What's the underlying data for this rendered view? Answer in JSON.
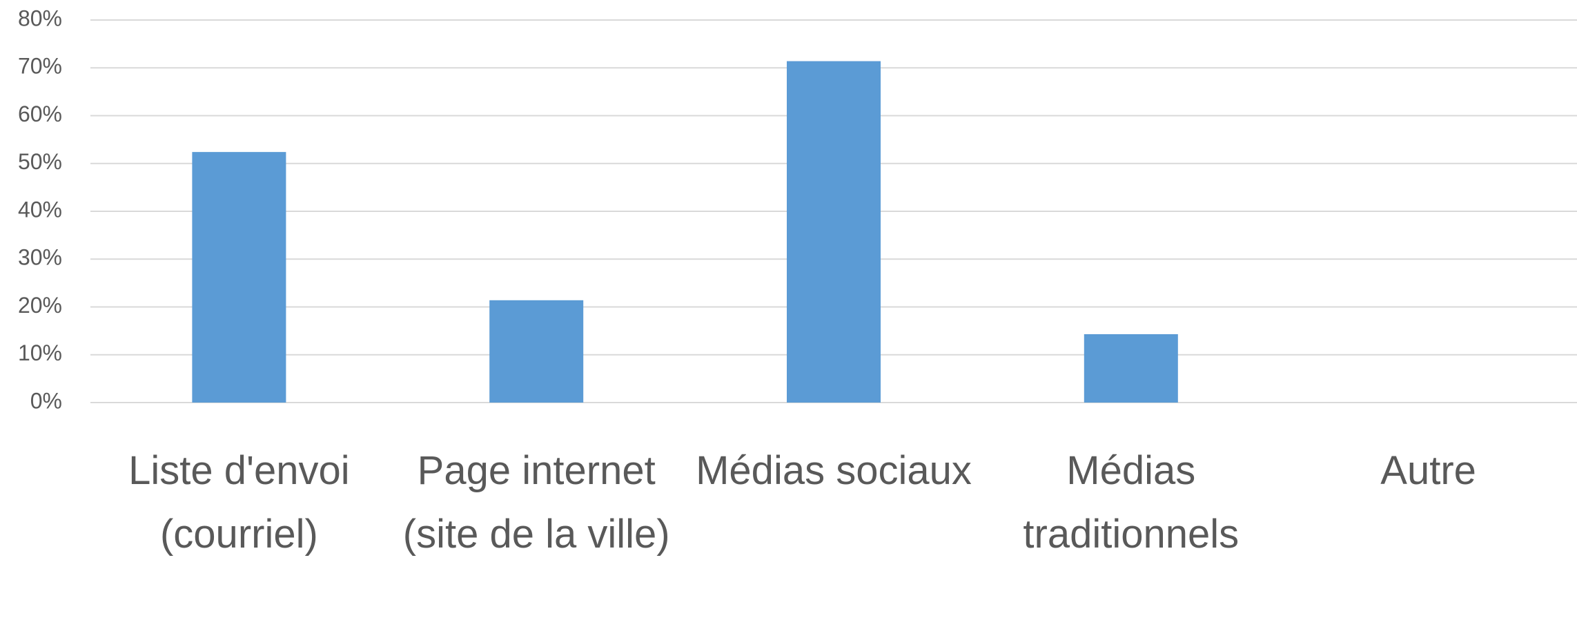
{
  "chart_data": {
    "type": "bar",
    "categories": [
      "Liste d'envoi (courriel)",
      "Page internet (site de la ville)",
      "Médias sociaux",
      "Médias traditionnels",
      "Autre"
    ],
    "values": [
      52.4,
      21.4,
      71.4,
      14.3,
      0
    ],
    "color": "#5b9bd5",
    "ylim": [
      0,
      80
    ],
    "yticks": [
      {
        "value": 0,
        "label": "0%"
      },
      {
        "value": 10,
        "label": "10%"
      },
      {
        "value": 20,
        "label": "20%"
      },
      {
        "value": 30,
        "label": "30%"
      },
      {
        "value": 40,
        "label": "40%"
      },
      {
        "value": 50,
        "label": "50%"
      },
      {
        "value": 60,
        "label": "60%"
      },
      {
        "value": 70,
        "label": "70%"
      },
      {
        "value": 80,
        "label": "80%"
      }
    ],
    "grid": true
  }
}
